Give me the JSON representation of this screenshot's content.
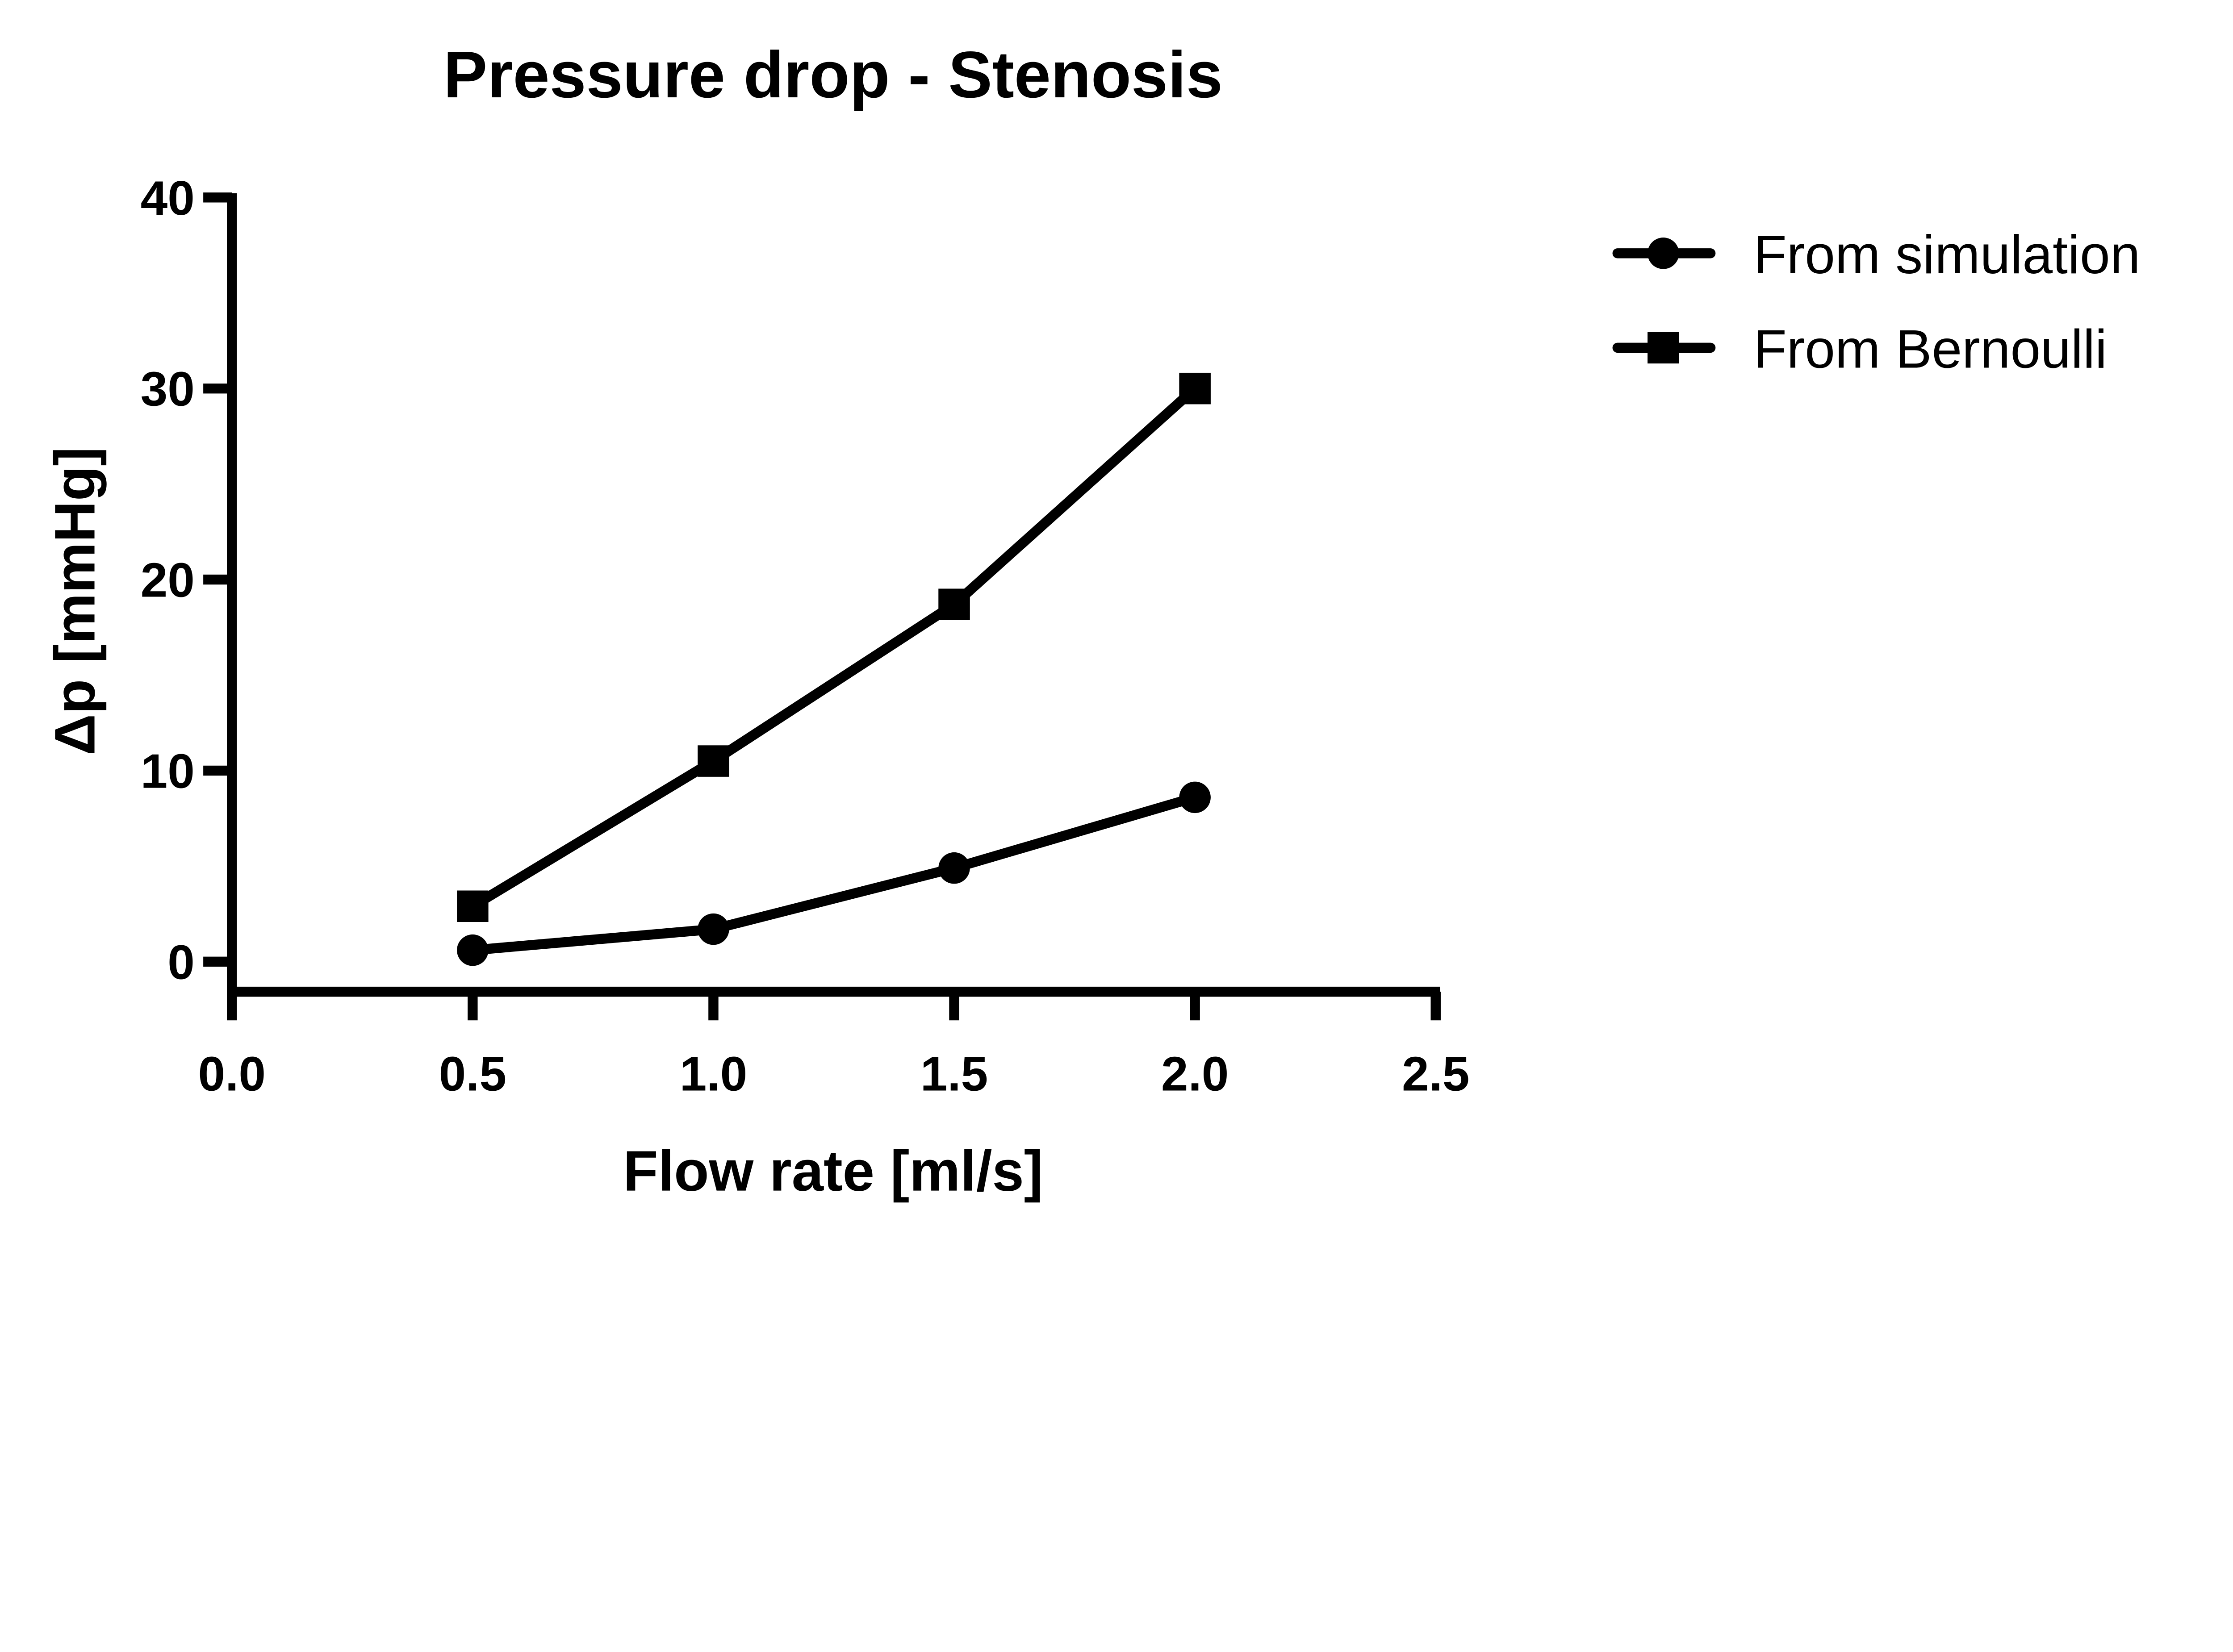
{
  "chart_data": {
    "type": "line",
    "title": "Pressure drop - Stenosis",
    "xlabel": "Flow rate [ml/s]",
    "ylabel": "Δp [mmHg]",
    "xlim": [
      0,
      2.5
    ],
    "ylim": [
      0,
      40
    ],
    "xticks": [
      "0.0",
      "0.5",
      "1.0",
      "1.5",
      "2.0",
      "2.5"
    ],
    "yticks": [
      "0",
      "10",
      "20",
      "30",
      "40"
    ],
    "grid": false,
    "legend_position": "top-right",
    "x": [
      0.5,
      1.0,
      1.5,
      2.0
    ],
    "series": [
      {
        "name": "From simulation",
        "marker": "circle",
        "color": "#000000",
        "values": [
          0.6,
          1.7,
          4.9,
          8.6
        ]
      },
      {
        "name": "From Bernoulli",
        "marker": "square",
        "color": "#000000",
        "values": [
          2.9,
          10.5,
          18.7,
          30.0
        ]
      }
    ]
  }
}
